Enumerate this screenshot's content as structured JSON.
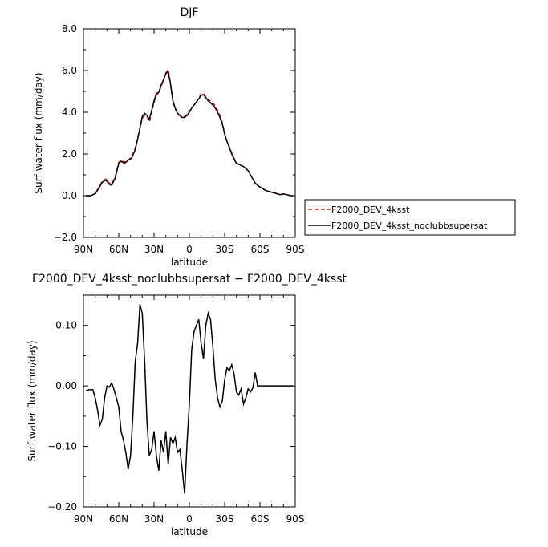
{
  "chart_data": [
    {
      "type": "line",
      "title": "DJF",
      "xlabel": "latitude",
      "ylabel": "Surf water flux (mm/day)",
      "xlim": [
        -90,
        90
      ],
      "ylim": [
        -2,
        8
      ],
      "xticks": [
        {
          "v": -90,
          "label": "90N"
        },
        {
          "v": -60,
          "label": "60N"
        },
        {
          "v": -30,
          "label": "30N"
        },
        {
          "v": 0,
          "label": "0"
        },
        {
          "v": 30,
          "label": "30S"
        },
        {
          "v": 60,
          "label": "60S"
        },
        {
          "v": 90,
          "label": "90S"
        }
      ],
      "yticks": [
        {
          "v": -2,
          "label": "−2.0"
        },
        {
          "v": 0,
          "label": "0.0"
        },
        {
          "v": 2,
          "label": "2.0"
        },
        {
          "v": 4,
          "label": "4.0"
        },
        {
          "v": 6,
          "label": "6.0"
        },
        {
          "v": 8,
          "label": "8.0"
        }
      ],
      "legend_position": "right",
      "series": [
        {
          "name": "F2000_DEV_4ksst",
          "color": "#e31a1c",
          "dash": "dashed",
          "x": [
            -88,
            -84,
            -80,
            -77,
            -74,
            -71,
            -68,
            -66,
            -63,
            -60,
            -58,
            -55,
            -52,
            -49,
            -46,
            -43,
            -40,
            -38,
            -36,
            -34,
            -32,
            -30,
            -28,
            -26,
            -24,
            -22,
            -20,
            -18,
            -16,
            -14,
            -12,
            -10,
            -8,
            -6,
            -4,
            -2,
            0,
            2,
            4,
            6,
            8,
            10,
            12,
            14,
            16,
            18,
            20,
            22,
            24,
            26,
            28,
            30,
            32,
            34,
            36,
            38,
            40,
            42,
            44,
            46,
            48,
            50,
            53,
            56,
            59,
            62,
            65,
            68,
            71,
            74,
            77,
            80,
            83,
            86,
            88
          ],
          "y": [
            0.0,
            0.0,
            0.1,
            0.4,
            0.7,
            0.8,
            0.6,
            0.55,
            0.9,
            1.6,
            1.7,
            1.6,
            1.7,
            1.85,
            2.3,
            3.0,
            3.7,
            3.85,
            3.8,
            3.55,
            4.05,
            4.45,
            4.85,
            4.9,
            5.25,
            5.5,
            5.9,
            6.05,
            5.4,
            4.5,
            4.15,
            3.95,
            3.82,
            3.75,
            3.8,
            3.9,
            4.05,
            4.2,
            4.35,
            4.5,
            4.65,
            4.9,
            4.9,
            4.75,
            4.6,
            4.55,
            4.45,
            4.3,
            4.1,
            3.85,
            3.5,
            3.0,
            2.6,
            2.35,
            2.05,
            1.8,
            1.6,
            1.5,
            1.45,
            1.4,
            1.3,
            1.2,
            0.9,
            0.6,
            0.45,
            0.35,
            0.25,
            0.2,
            0.15,
            0.1,
            0.05,
            0.08,
            0.05,
            0.0,
            0.0
          ]
        },
        {
          "name": "F2000_DEV_4ksst_noclubbsupersat",
          "color": "#000000",
          "dash": "solid",
          "x": [
            -88,
            -84,
            -80,
            -77,
            -74,
            -71,
            -68,
            -66,
            -63,
            -60,
            -58,
            -55,
            -52,
            -49,
            -46,
            -43,
            -40,
            -38,
            -36,
            -34,
            -32,
            -30,
            -28,
            -26,
            -24,
            -22,
            -20,
            -18,
            -16,
            -14,
            -12,
            -10,
            -8,
            -6,
            -4,
            -2,
            0,
            2,
            4,
            6,
            8,
            10,
            12,
            14,
            16,
            18,
            20,
            22,
            24,
            26,
            28,
            30,
            32,
            34,
            36,
            38,
            40,
            42,
            44,
            46,
            48,
            50,
            53,
            56,
            59,
            62,
            65,
            68,
            71,
            74,
            77,
            80,
            83,
            86,
            88
          ],
          "y": [
            0.0,
            0.0,
            0.1,
            0.35,
            0.65,
            0.75,
            0.55,
            0.5,
            0.85,
            1.55,
            1.65,
            1.55,
            1.7,
            1.8,
            2.2,
            2.95,
            3.8,
            3.95,
            3.85,
            3.65,
            4.1,
            4.55,
            4.9,
            4.95,
            5.3,
            5.55,
            5.85,
            5.95,
            5.35,
            4.55,
            4.2,
            3.95,
            3.85,
            3.75,
            3.75,
            3.85,
            4.0,
            4.2,
            4.35,
            4.5,
            4.65,
            4.8,
            4.85,
            4.7,
            4.55,
            4.45,
            4.35,
            4.2,
            4.0,
            3.75,
            3.45,
            2.95,
            2.6,
            2.3,
            2.0,
            1.75,
            1.55,
            1.5,
            1.45,
            1.4,
            1.3,
            1.2,
            0.9,
            0.6,
            0.45,
            0.35,
            0.25,
            0.2,
            0.15,
            0.1,
            0.05,
            0.08,
            0.05,
            0.0,
            0.0
          ]
        }
      ]
    },
    {
      "type": "line",
      "title": "F2000_DEV_4ksst_noclubbsupersat − F2000_DEV_4ksst",
      "xlabel": "latitude",
      "ylabel": "Surf water flux (mm/day)",
      "xlim": [
        -90,
        90
      ],
      "ylim": [
        -0.2,
        0.15
      ],
      "xticks": [
        {
          "v": -90,
          "label": "90N"
        },
        {
          "v": -60,
          "label": "60N"
        },
        {
          "v": -30,
          "label": "30N"
        },
        {
          "v": 0,
          "label": "0"
        },
        {
          "v": 30,
          "label": "30S"
        },
        {
          "v": 60,
          "label": "60S"
        },
        {
          "v": 90,
          "label": "90S"
        }
      ],
      "yticks": [
        {
          "v": -0.2,
          "label": "−0.20"
        },
        {
          "v": -0.1,
          "label": "−0.10"
        },
        {
          "v": 0.0,
          "label": "0.00"
        },
        {
          "v": 0.1,
          "label": "0.10"
        }
      ],
      "series": [
        {
          "color": "#000000",
          "dash": "solid",
          "x": [
            -88,
            -85,
            -82,
            -80,
            -78,
            -76,
            -74,
            -72,
            -70,
            -68,
            -66,
            -64,
            -62,
            -60,
            -58,
            -56,
            -54,
            -52,
            -50,
            -48,
            -46,
            -44,
            -42,
            -40,
            -38,
            -36,
            -34,
            -32,
            -30,
            -28,
            -26,
            -24,
            -22,
            -20,
            -18,
            -16,
            -14,
            -12,
            -10,
            -8,
            -6,
            -4,
            -2,
            0,
            2,
            4,
            6,
            8,
            10,
            12,
            14,
            16,
            18,
            20,
            22,
            24,
            26,
            28,
            30,
            32,
            34,
            36,
            38,
            40,
            42,
            44,
            46,
            48,
            50,
            52,
            54,
            56,
            58,
            60,
            62,
            64,
            66,
            68,
            70,
            72,
            74,
            76,
            78,
            80,
            82,
            84,
            86,
            88
          ],
          "y": [
            -0.008,
            -0.006,
            -0.006,
            -0.02,
            -0.04,
            -0.065,
            -0.055,
            -0.02,
            0.0,
            -0.002,
            0.005,
            -0.006,
            -0.02,
            -0.035,
            -0.075,
            -0.09,
            -0.11,
            -0.138,
            -0.115,
            -0.05,
            0.04,
            0.07,
            0.135,
            0.12,
            0.04,
            -0.06,
            -0.115,
            -0.105,
            -0.075,
            -0.115,
            -0.14,
            -0.09,
            -0.11,
            -0.075,
            -0.13,
            -0.085,
            -0.095,
            -0.085,
            -0.11,
            -0.105,
            -0.14,
            -0.178,
            -0.095,
            -0.03,
            0.06,
            0.09,
            0.1,
            0.11,
            0.07,
            0.045,
            0.1,
            0.12,
            0.11,
            0.065,
            0.01,
            -0.02,
            -0.035,
            -0.025,
            0.01,
            0.03,
            0.025,
            0.035,
            0.02,
            -0.01,
            -0.015,
            -0.005,
            -0.03,
            -0.02,
            -0.005,
            -0.01,
            -0.003,
            0.022,
            0.0,
            0.0,
            0.0,
            0.0,
            0.0,
            0.0,
            0.0,
            0.0,
            0.0,
            0.0,
            0.0,
            0.0,
            0.0,
            0.0,
            0.0,
            0.0
          ]
        }
      ]
    }
  ]
}
